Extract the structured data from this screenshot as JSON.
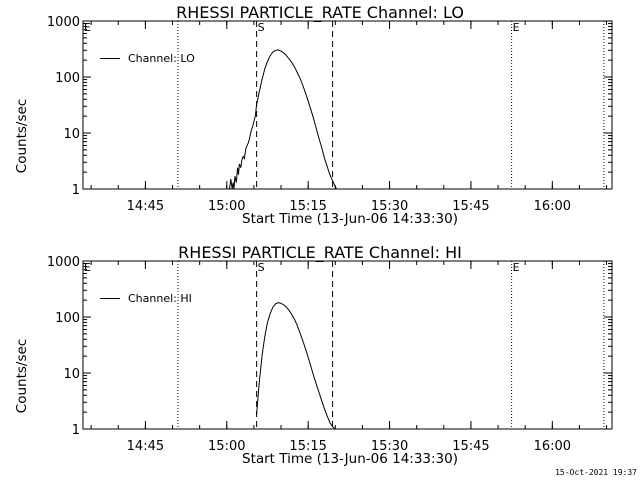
{
  "footer": {
    "timestamp": "15-Oct-2021 19:37"
  },
  "chart_data": [
    {
      "type": "line",
      "title": "RHESSI PARTICLE_RATE Channel: LO",
      "xlabel": "Start Time (13-Jun-06 14:33:30)",
      "ylabel": "Counts/sec",
      "yscale": "log",
      "ylim": [
        1,
        1000
      ],
      "xlim": [
        "14:33:30",
        "16:11"
      ],
      "x_ticks": [
        "14:45",
        "15:00",
        "15:15",
        "15:30",
        "15:45",
        "16:00"
      ],
      "y_ticks": [
        "1",
        "10",
        "100",
        "1000"
      ],
      "legend": {
        "position": "top-left",
        "entries": [
          "Channel: LO"
        ]
      },
      "markers": {
        "S": "15:05:30",
        "E": "15:52:30"
      },
      "dashed_lines": [
        "15:05:30",
        "15:19:30"
      ],
      "dotted_lines": [
        "14:51:00",
        "15:52:30",
        "16:09:30"
      ],
      "series": [
        {
          "name": "Channel: LO",
          "x": [
            "15:00:30",
            "15:00:45",
            "15:01:00",
            "15:01:10",
            "15:01:20",
            "15:01:30",
            "15:01:45",
            "15:02:00",
            "15:02:10",
            "15:02:20",
            "15:02:35",
            "15:02:45",
            "15:03:00",
            "15:03:15",
            "15:03:30",
            "15:03:45",
            "15:04:00",
            "15:04:15",
            "15:04:30",
            "15:04:45",
            "15:05:00",
            "15:05:15",
            "15:05:30",
            "15:06:00",
            "15:06:30",
            "15:07:00",
            "15:07:30",
            "15:08:00",
            "15:08:30",
            "15:09:00",
            "15:09:30",
            "15:10:00",
            "15:10:30",
            "15:11:00",
            "15:11:30",
            "15:12:00",
            "15:12:30",
            "15:13:00",
            "15:13:30",
            "15:14:00",
            "15:14:30",
            "15:15:00",
            "15:15:30",
            "15:16:00",
            "15:16:30",
            "15:17:00",
            "15:17:30",
            "15:18:00",
            "15:18:30",
            "15:19:00",
            "15:19:30",
            "15:20:00",
            "15:20:15"
          ],
          "values": [
            1,
            1.5,
            1,
            1.3,
            1,
            1.7,
            1.3,
            2.4,
            1.8,
            2.8,
            2.4,
            3.2,
            3.8,
            3.5,
            5.2,
            6,
            6.8,
            8.5,
            11,
            13,
            16,
            20,
            32,
            55,
            90,
            140,
            190,
            240,
            280,
            300,
            305,
            290,
            270,
            240,
            210,
            180,
            150,
            120,
            95,
            72,
            52,
            37,
            26,
            18,
            12,
            8,
            5.5,
            3.6,
            2.5,
            1.8,
            1.4,
            1.1,
            1
          ]
        }
      ]
    },
    {
      "type": "line",
      "title": "RHESSI PARTICLE_RATE Channel: HI",
      "xlabel": "Start Time (13-Jun-06 14:33:30)",
      "ylabel": "Counts/sec",
      "yscale": "log",
      "ylim": [
        1,
        1000
      ],
      "xlim": [
        "14:33:30",
        "16:11"
      ],
      "x_ticks": [
        "14:45",
        "15:00",
        "15:15",
        "15:30",
        "15:45",
        "16:00"
      ],
      "y_ticks": [
        "1",
        "10",
        "100",
        "1000"
      ],
      "legend": {
        "position": "top-left",
        "entries": [
          "Channel: HI"
        ]
      },
      "markers": {
        "S": "15:05:30",
        "E": "15:52:30"
      },
      "dashed_lines": [
        "15:05:30",
        "15:19:30"
      ],
      "dotted_lines": [
        "14:51:00",
        "15:52:30",
        "16:09:30"
      ],
      "series": [
        {
          "name": "Channel: HI",
          "x": [
            "15:05:30",
            "15:06:00",
            "15:06:30",
            "15:07:00",
            "15:07:30",
            "15:08:00",
            "15:08:30",
            "15:09:00",
            "15:09:30",
            "15:10:00",
            "15:10:30",
            "15:11:00",
            "15:11:30",
            "15:12:00",
            "15:12:30",
            "15:13:00",
            "15:13:30",
            "15:14:00",
            "15:14:30",
            "15:15:00",
            "15:15:30",
            "15:16:00",
            "15:16:30",
            "15:17:00",
            "15:17:30",
            "15:18:00",
            "15:18:30",
            "15:19:00",
            "15:19:30",
            "15:20:00",
            "15:20:15"
          ],
          "values": [
            1.8,
            7,
            20,
            45,
            80,
            115,
            150,
            172,
            180,
            176,
            165,
            150,
            130,
            110,
            90,
            70,
            52,
            38,
            27,
            19,
            13,
            9,
            6.3,
            4.5,
            3.2,
            2.3,
            1.7,
            1.3,
            1.1,
            1,
            1
          ]
        }
      ]
    }
  ]
}
